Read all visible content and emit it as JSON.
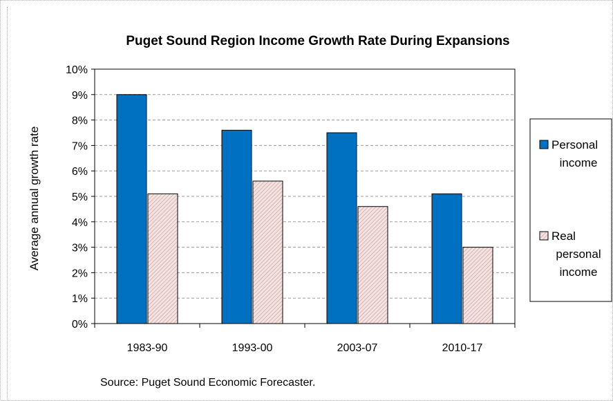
{
  "chart_data": {
    "type": "bar",
    "title": "Puget Sound Region Income Growth Rate During Expansions",
    "ylabel": "Average annual growth rate",
    "xlabel": "",
    "categories": [
      "1983-90",
      "1993-00",
      "2003-07",
      "2010-17"
    ],
    "series": [
      {
        "name": "Personal income",
        "legend_lines": [
          "Personal",
          "income"
        ],
        "values": [
          9.0,
          7.6,
          7.5,
          5.1
        ],
        "color": "#0070C0"
      },
      {
        "name": "Real personal income",
        "legend_lines": [
          "Real",
          "personal",
          "income"
        ],
        "values": [
          5.1,
          5.6,
          4.6,
          3.0
        ],
        "color": "#E8CFCC"
      }
    ],
    "ylim": [
      0,
      10
    ],
    "yticks": [
      "0%",
      "1%",
      "2%",
      "3%",
      "4%",
      "5%",
      "6%",
      "7%",
      "8%",
      "9%",
      "10%"
    ],
    "grid": true,
    "legend_position": "right",
    "source": "Source: Puget Sound Economic Forecaster."
  }
}
